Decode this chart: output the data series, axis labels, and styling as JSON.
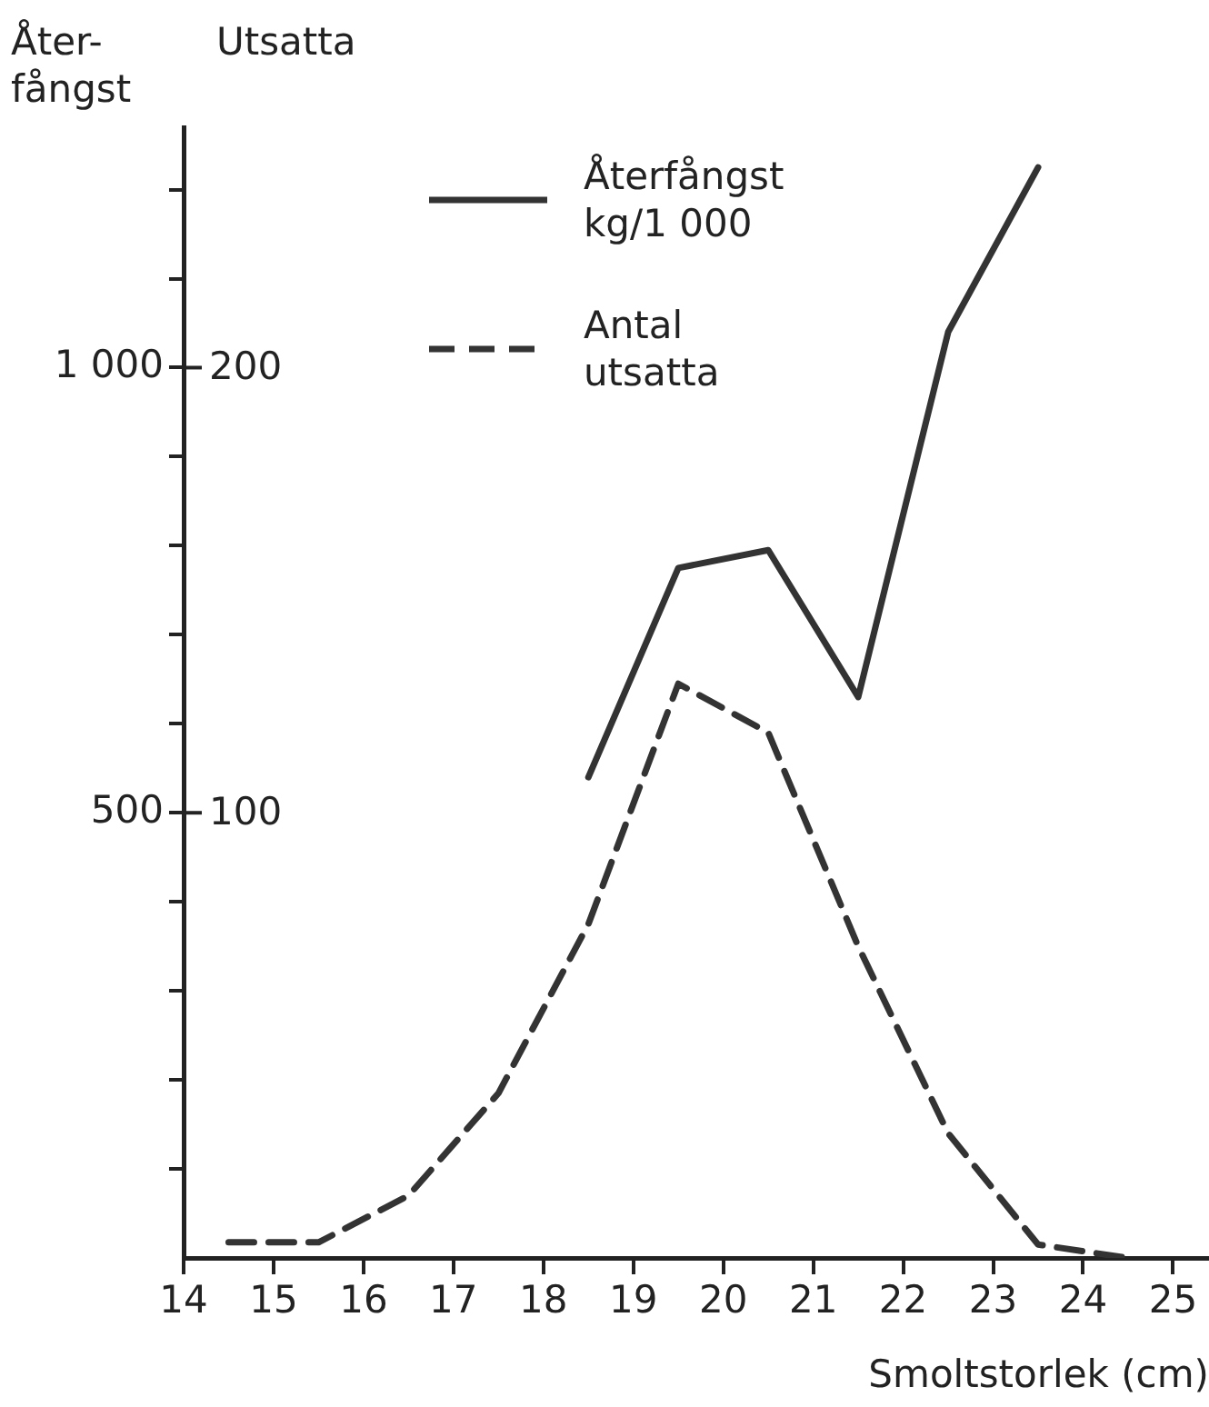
{
  "chart_data": {
    "type": "line",
    "xlabel": "Smoltstorlek (cm)",
    "ylabel": "Åter- fångst",
    "y2label": "Utsatta",
    "x": [
      14.5,
      15.5,
      16.5,
      17.5,
      18.5,
      19.5,
      20.5,
      21.5,
      22.5,
      23.5,
      24.5
    ],
    "series": [
      {
        "name": "Återfångst kg/1 000",
        "color": "#333333",
        "line_style": "solid",
        "values": [
          null,
          null,
          null,
          null,
          540,
          775,
          795,
          630,
          1040,
          1225,
          null
        ]
      },
      {
        "name": "Antal utsatta",
        "color": "#333333",
        "line_style": "dashed",
        "axis": "y2",
        "values": [
          3.5,
          3.5,
          14,
          37,
          75,
          129,
          118,
          70,
          28,
          3,
          0
        ]
      }
    ],
    "xlim": [
      14,
      25.4
    ],
    "xticks": [
      14,
      15,
      16,
      17,
      18,
      19,
      20,
      21,
      22,
      23,
      24,
      25
    ],
    "ylim": [
      0,
      1270
    ],
    "yticks": [
      {
        "value": 100,
        "label": null
      },
      {
        "value": 200,
        "label": null
      },
      {
        "value": 300,
        "label": null
      },
      {
        "value": 400,
        "label": null
      },
      {
        "value": 500,
        "label": "500"
      },
      {
        "value": 600,
        "label": null
      },
      {
        "value": 700,
        "label": null
      },
      {
        "value": 800,
        "label": null
      },
      {
        "value": 900,
        "label": null
      },
      {
        "value": 1000,
        "label": "1 000"
      },
      {
        "value": 1100,
        "label": null
      },
      {
        "value": 1200,
        "label": null
      }
    ],
    "y2lim": [
      0,
      254
    ],
    "y2ticks": [
      100,
      200
    ],
    "grid": false,
    "legend": "top",
    "marker": "none"
  }
}
